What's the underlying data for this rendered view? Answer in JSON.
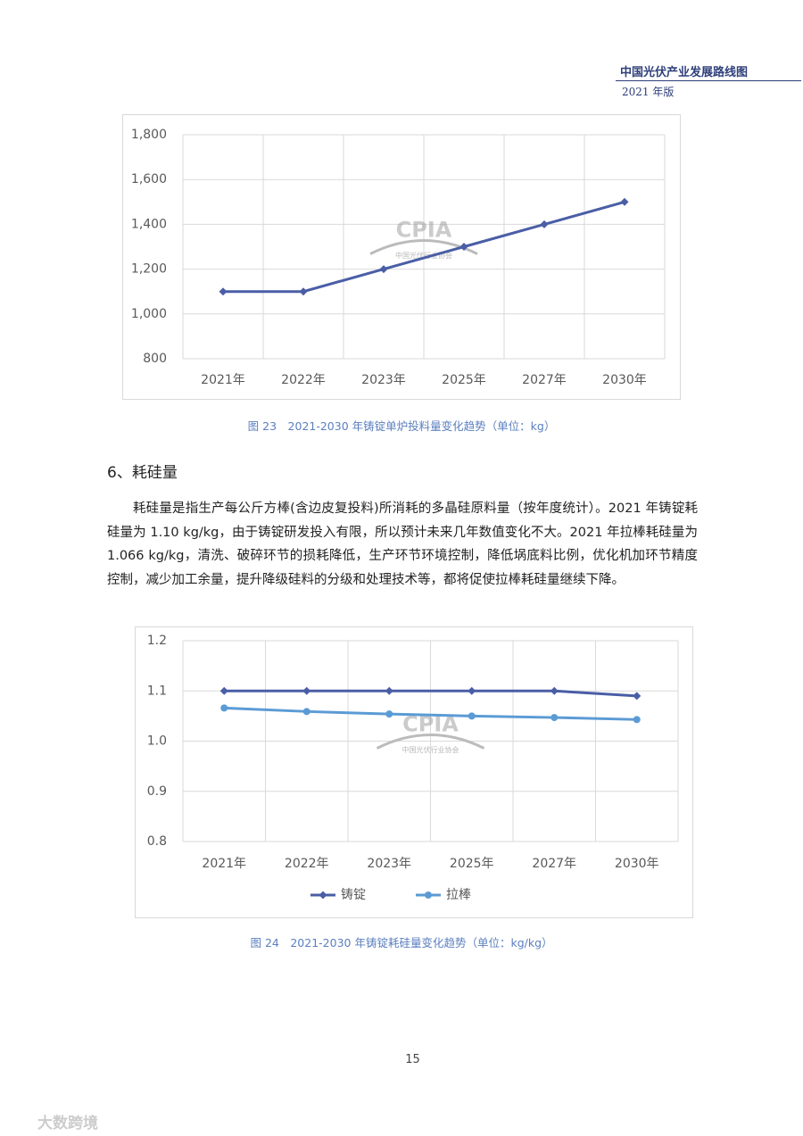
{
  "header": {
    "title": "中国光伏产业发展路线图",
    "edition": "2021 年版"
  },
  "chart_data": [
    {
      "type": "line",
      "caption": "图 23　2021-2030 年铸锭单炉投料量变化趋势（单位：kg）",
      "watermark": {
        "logo": "CPIA",
        "org": "中国光伏行业协会"
      },
      "categories": [
        "2021年",
        "2022年",
        "2023年",
        "2025年",
        "2027年",
        "2030年"
      ],
      "series": [
        {
          "name": null,
          "color": "#4a5ea6",
          "marker": "diamond",
          "values": [
            1100,
            1100,
            1200,
            1300,
            1400,
            1500
          ]
        }
      ],
      "ylim": [
        800,
        1800
      ],
      "yticks": [
        800,
        {
          "value": 1000,
          "label": "1,000"
        },
        {
          "value": 1200,
          "label": "1,200"
        },
        {
          "value": 1400,
          "label": "1,400"
        },
        {
          "value": 1600,
          "label": "1,600"
        },
        {
          "value": 1800,
          "label": "1,800"
        }
      ],
      "grid": true,
      "legend": false
    },
    {
      "type": "line",
      "caption": "图 24　2021-2030 年铸锭耗硅量变化趋势（单位：kg/kg）",
      "watermark": {
        "logo": "CPIA",
        "org": "中国光伏行业协会"
      },
      "categories": [
        "2021年",
        "2022年",
        "2023年",
        "2025年",
        "2027年",
        "2030年"
      ],
      "series": [
        {
          "name": "铸锭",
          "color": "#4a5ea6",
          "marker": "diamond",
          "values": [
            1.1,
            1.1,
            1.1,
            1.1,
            1.1,
            1.09
          ]
        },
        {
          "name": "拉棒",
          "color": "#5b9bd5",
          "marker": "circle",
          "values": [
            1.066,
            1.059,
            1.054,
            1.05,
            1.047,
            1.043
          ]
        }
      ],
      "ylim": [
        0.8,
        1.2
      ],
      "yticks": [
        0.8,
        0.9,
        {
          "value": 1,
          "label": "1.0"
        },
        1.1,
        1.2
      ],
      "grid": true,
      "legend": "bottom"
    }
  ],
  "section": {
    "heading": "6、耗硅量",
    "paragraph": "耗硅量是指生产每公斤方棒(含边皮复投料)所消耗的多晶硅原料量（按年度统计）。2021 年铸锭耗硅量为 1.10 kg/kg，由于铸锭研发投入有限，所以预计未来几年数值变化不大。2021 年拉棒耗硅量为 1.066 kg/kg，清洗、破碎环节的损耗降低，生产环节环境控制，降低埚底料比例，优化机加环节精度控制，减少加工余量，提升降级硅料的分级和处理技术等，都将促使拉棒耗硅量继续下降。"
  },
  "page_number": "15",
  "footer_watermark": "大数跨境"
}
